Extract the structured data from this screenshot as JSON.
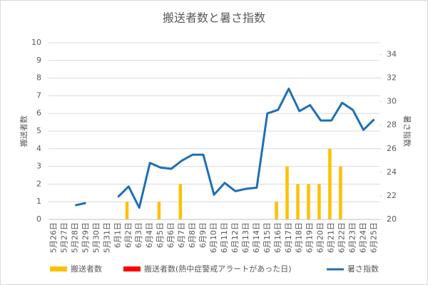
{
  "chart_data": {
    "type": "bar-line",
    "title": "搬送者数と暑さ指数",
    "y_label": "搬送者数",
    "y2_label": "暑さ指数",
    "categories": [
      "5月26日",
      "5月27日",
      "5月28日",
      "5月29日",
      "5月30日",
      "5月31日",
      "6月1日",
      "6月2日",
      "6月3日",
      "6月4日",
      "6月5日",
      "6月6日",
      "6月7日",
      "6月8日",
      "6月9日",
      "6月10日",
      "6月11日",
      "6月12日",
      "6月13日",
      "6月14日",
      "6月15日",
      "6月16日",
      "6月17日",
      "6月18日",
      "6月19日",
      "6月20日",
      "6月21日",
      "6月22日",
      "6月23日",
      "6月24日",
      "6月25日"
    ],
    "series": [
      {
        "name": "搬送者数",
        "type": "bar",
        "color": "#ffc000",
        "values": [
          0,
          0,
          0,
          0,
          0,
          0,
          0,
          1,
          0,
          0,
          1,
          0,
          2,
          0,
          0,
          0,
          0,
          0,
          0,
          0,
          0,
          1,
          3,
          2,
          2,
          2,
          4,
          3,
          0,
          0,
          0
        ]
      },
      {
        "name": "搬送者数(熱中症警戒アラートがあった日)",
        "type": "bar",
        "color": "#ff0000",
        "values": [
          0,
          0,
          0,
          0,
          0,
          0,
          0,
          0,
          0,
          0,
          0,
          0,
          0,
          0,
          0,
          0,
          0,
          0,
          0,
          0,
          0,
          0,
          0,
          0,
          0,
          0,
          0,
          0,
          0,
          0,
          0
        ]
      },
      {
        "name": "暑さ指数",
        "type": "line",
        "axis": "y2",
        "color": "#1f6fb5",
        "values": [
          null,
          null,
          21.2,
          21.4,
          null,
          null,
          21.9,
          22.8,
          21.0,
          24.8,
          24.4,
          24.3,
          25.0,
          25.5,
          25.5,
          22.1,
          23.1,
          22.4,
          22.6,
          22.7,
          29.0,
          29.3,
          31.1,
          29.2,
          29.7,
          28.4,
          28.4,
          29.9,
          29.3,
          27.6,
          28.5
        ]
      }
    ],
    "ylim": [
      0,
      10
    ],
    "yticks": [
      0,
      1,
      2,
      3,
      4,
      5,
      6,
      7,
      8,
      9,
      10
    ],
    "y2lim": [
      20,
      35
    ],
    "y2ticks": [
      20,
      22,
      24,
      26,
      28,
      30,
      32,
      34
    ],
    "grid": true,
    "legend": "bottom"
  }
}
